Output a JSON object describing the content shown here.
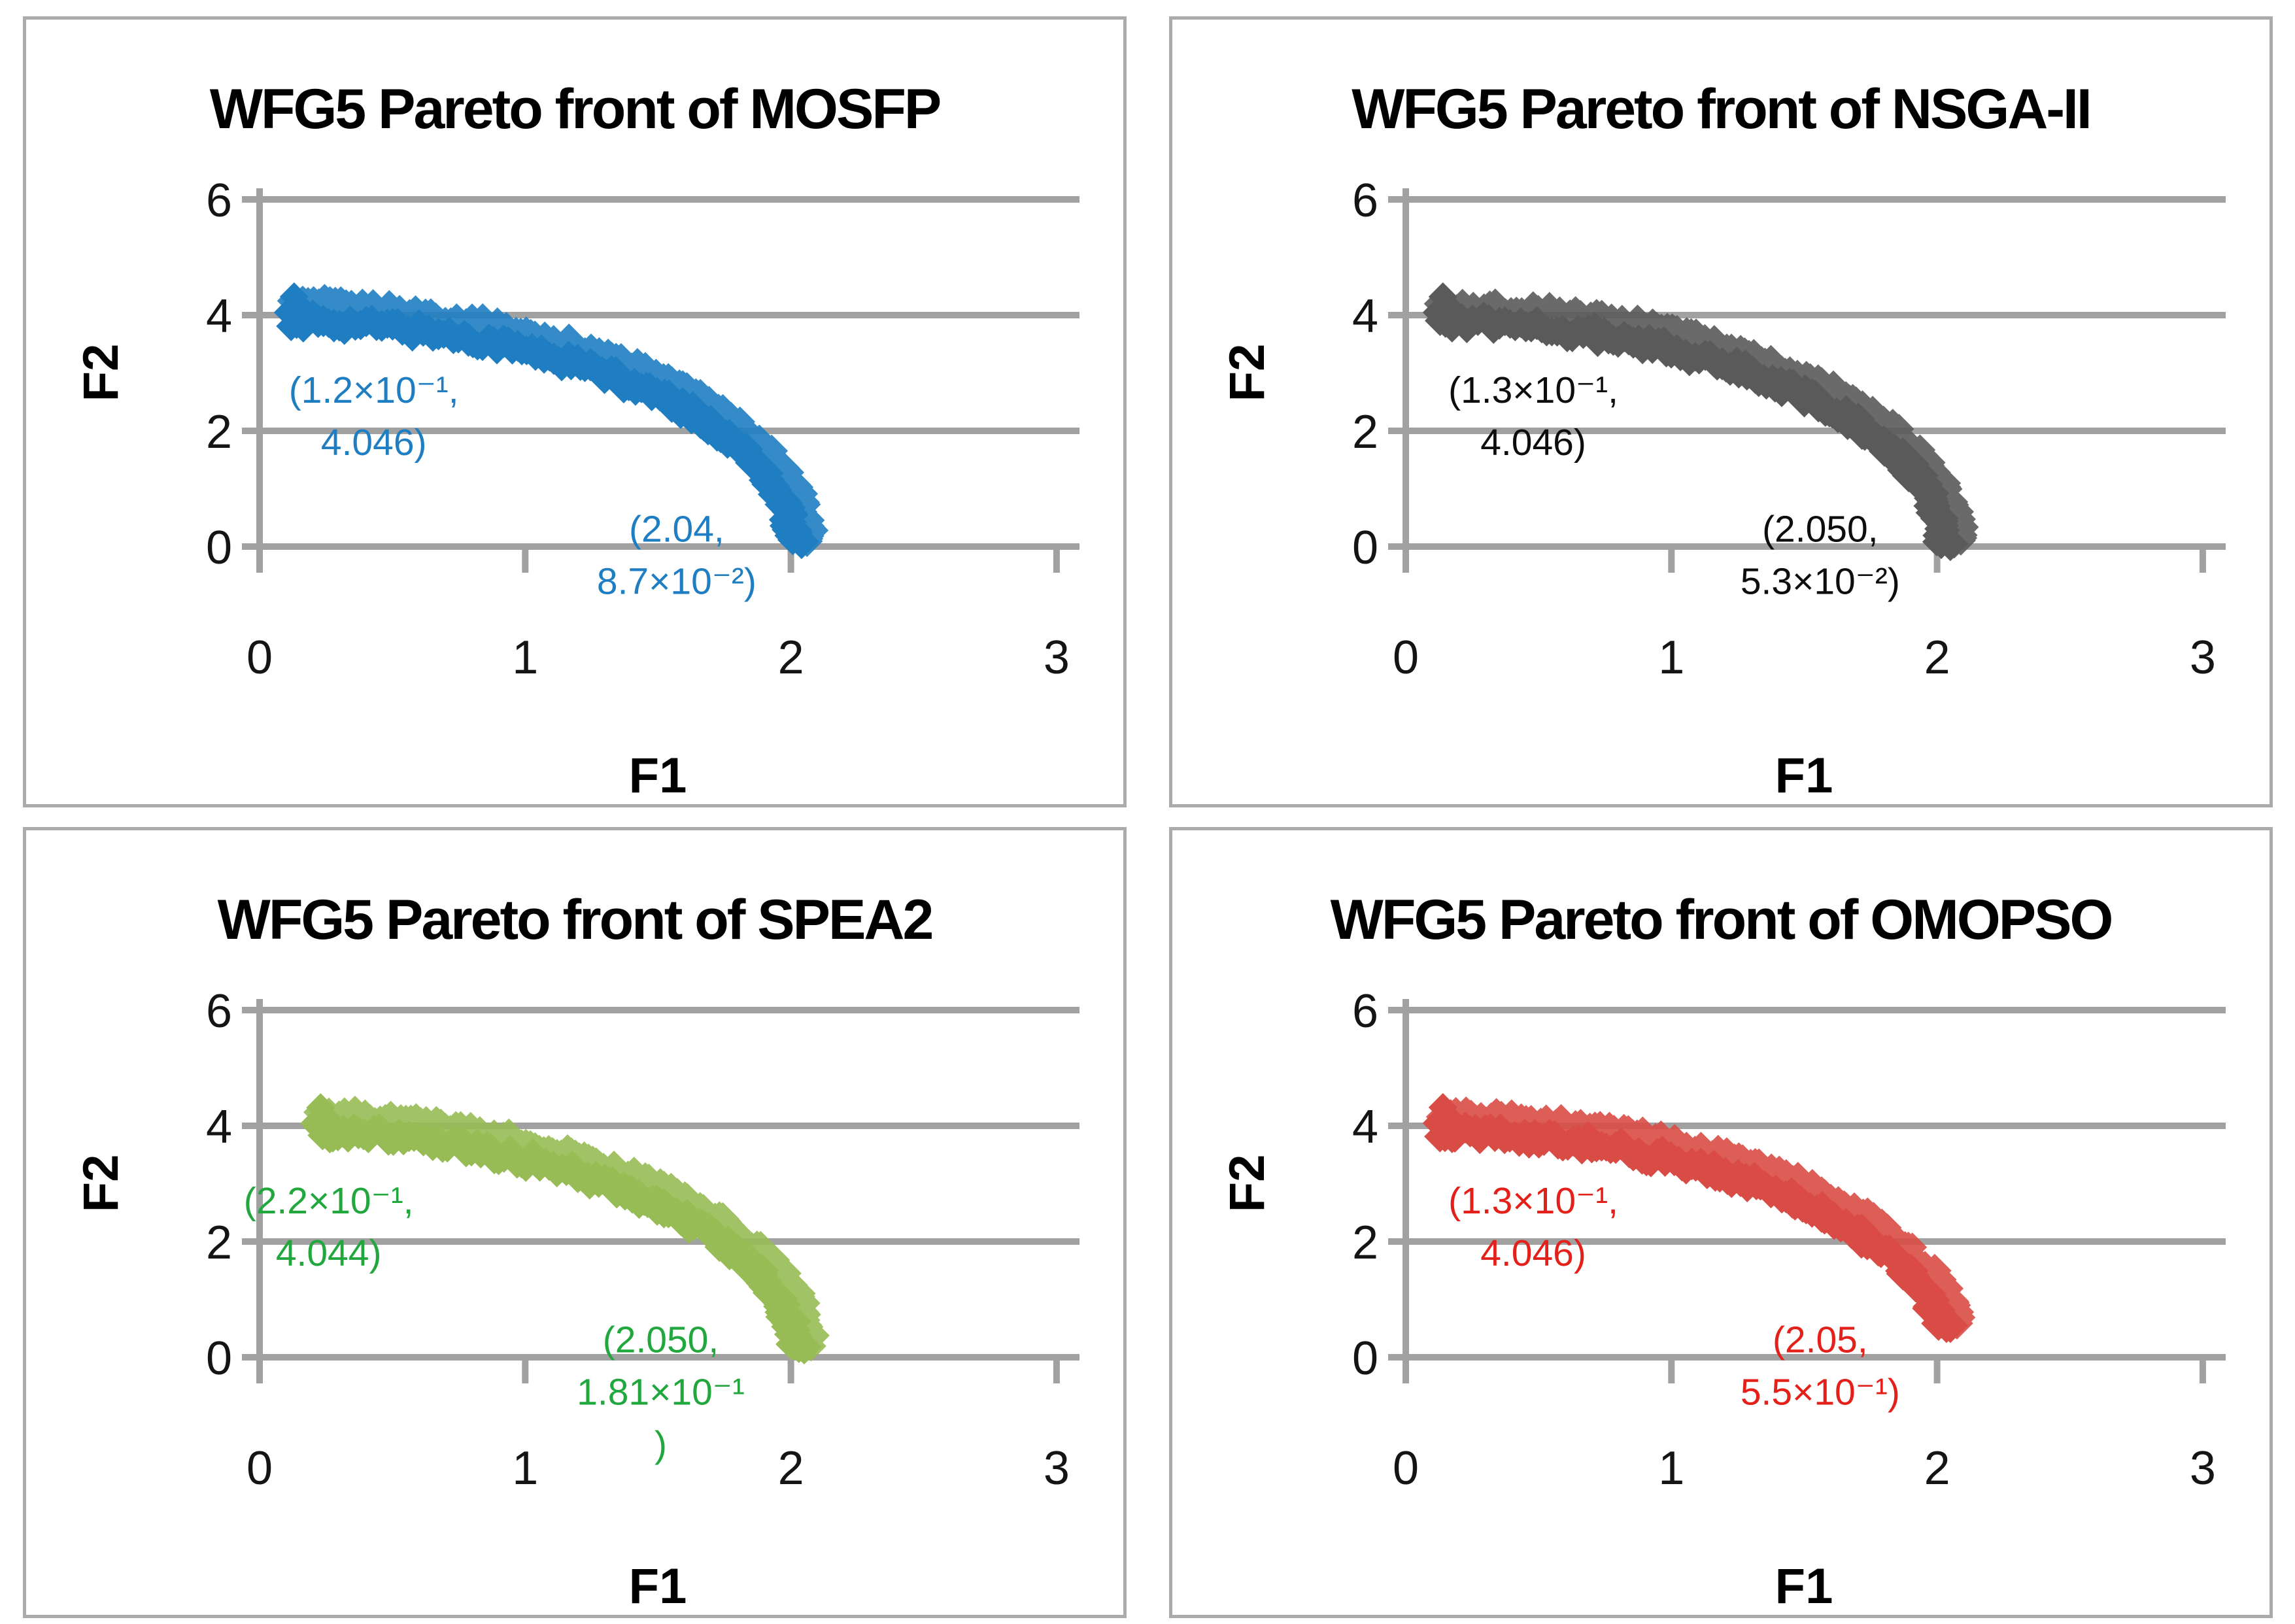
{
  "style": {
    "background": "#FFFFFF",
    "panel_border_color": "#ABABAB",
    "grid_color": "#A1A1A1",
    "tick_label_color": "#141414",
    "title_color": "#000000"
  },
  "chart_data": [
    {
      "type": "scatter",
      "title": "WFG5 Pareto front of MOSFP",
      "xlabel": "F1",
      "ylabel": "F2",
      "xlim": [
        0,
        3
      ],
      "ylim": [
        0,
        6
      ],
      "x_ticks": [
        0,
        1,
        2,
        3
      ],
      "y_ticks": [
        6,
        4,
        2,
        0
      ],
      "grid": true,
      "legend": false,
      "marker": "diamond",
      "front_start": [
        0.12,
        4.046
      ],
      "front_end": [
        2.04,
        0.087
      ],
      "series": [
        {
          "name": "MOSFP",
          "color": "#1F7EC2",
          "points": [
            [
              0.12,
              4.046
            ],
            [
              0.3,
              4.009
            ],
            [
              0.5,
              3.93
            ],
            [
              0.7,
              3.807
            ],
            [
              0.9,
              3.638
            ],
            [
              1.1,
              3.414
            ],
            [
              1.3,
              3.124
            ],
            [
              1.5,
              2.748
            ],
            [
              1.7,
              2.242
            ],
            [
              1.85,
              1.711
            ],
            [
              1.95,
              1.194
            ],
            [
              2.0,
              0.805
            ],
            [
              2.04,
              0.087
            ]
          ]
        }
      ],
      "annotations": [
        {
          "lines": [
            "(1.2×10⁻¹,",
            "4.046)"
          ],
          "x": 0.43,
          "y": 2.7,
          "color": "#1F7EC2"
        },
        {
          "lines": [
            "(2.04,",
            "8.7×10⁻²)"
          ],
          "x": 1.57,
          "y": 0.3,
          "color": "#1F7EC2"
        }
      ]
    },
    {
      "type": "scatter",
      "title": "WFG5 Pareto front of NSGA-II",
      "xlabel": "F1",
      "ylabel": "F2",
      "xlim": [
        0,
        3
      ],
      "ylim": [
        0,
        6
      ],
      "x_ticks": [
        0,
        1,
        2,
        3
      ],
      "y_ticks": [
        6,
        4,
        2,
        0
      ],
      "grid": true,
      "legend": false,
      "marker": "diamond",
      "front_start": [
        0.13,
        4.046
      ],
      "front_end": [
        2.05,
        0.053
      ],
      "series": [
        {
          "name": "NSGA-II",
          "color": "#5A5A5A",
          "points": [
            [
              0.13,
              4.046
            ],
            [
              0.3,
              4.011
            ],
            [
              0.5,
              3.932
            ],
            [
              0.7,
              3.811
            ],
            [
              0.9,
              3.643
            ],
            [
              1.1,
              3.422
            ],
            [
              1.3,
              3.135
            ],
            [
              1.5,
              2.764
            ],
            [
              1.7,
              2.267
            ],
            [
              1.85,
              1.748
            ],
            [
              1.95,
              1.252
            ],
            [
              2.0,
              0.892
            ],
            [
              2.05,
              0.053
            ]
          ]
        }
      ],
      "annotations": [
        {
          "lines": [
            "(1.3×10⁻¹,",
            "4.046)"
          ],
          "x": 0.48,
          "y": 2.7,
          "color": "#0D0D0D"
        },
        {
          "lines": [
            "(2.050,",
            "5.3×10⁻²)"
          ],
          "x": 1.56,
          "y": 0.3,
          "color": "#0D0D0D"
        }
      ]
    },
    {
      "type": "scatter",
      "title": "WFG5 Pareto front of SPEA2",
      "xlabel": "F1",
      "ylabel": "F2",
      "xlim": [
        0,
        3
      ],
      "ylim": [
        0,
        6
      ],
      "x_ticks": [
        0,
        1,
        2,
        3
      ],
      "y_ticks": [
        6,
        4,
        2,
        0
      ],
      "grid": true,
      "legend": false,
      "marker": "diamond",
      "front_start": [
        0.22,
        4.044
      ],
      "front_end": [
        2.05,
        0.181
      ],
      "series": [
        {
          "name": "SPEA2",
          "color": "#97BC55",
          "points": [
            [
              0.22,
              4.044
            ],
            [
              0.4,
              3.99
            ],
            [
              0.6,
              3.89
            ],
            [
              0.8,
              3.746
            ],
            [
              1.0,
              3.552
            ],
            [
              1.2,
              3.3
            ],
            [
              1.4,
              2.974
            ],
            [
              1.6,
              2.547
            ],
            [
              1.8,
              1.953
            ],
            [
              1.95,
              1.267
            ],
            [
              2.0,
              0.91
            ],
            [
              2.05,
              0.181
            ]
          ]
        }
      ],
      "annotations": [
        {
          "lines": [
            "(2.2×10⁻¹,",
            "4.044)"
          ],
          "x": 0.26,
          "y": 2.7,
          "color": "#21A73D"
        },
        {
          "lines": [
            "(2.050,",
            "1.81×10⁻¹",
            ")"
          ],
          "x": 1.51,
          "y": 0.3,
          "color": "#21A73D"
        }
      ]
    },
    {
      "type": "scatter",
      "title": "WFG5 Pareto front of OMOPSO",
      "xlabel": "F1",
      "ylabel": "F2",
      "xlim": [
        0,
        3
      ],
      "ylim": [
        0,
        6
      ],
      "x_ticks": [
        0,
        1,
        2,
        3
      ],
      "y_ticks": [
        6,
        4,
        2,
        0
      ],
      "grid": true,
      "legend": false,
      "marker": "diamond",
      "front_start": [
        0.13,
        4.046
      ],
      "front_end": [
        2.05,
        0.55
      ],
      "series": [
        {
          "name": "OMOPSO",
          "color": "#D94B45",
          "points": [
            [
              0.13,
              4.046
            ],
            [
              0.3,
              4.012
            ],
            [
              0.5,
              3.934
            ],
            [
              0.7,
              3.815
            ],
            [
              0.9,
              3.651
            ],
            [
              1.1,
              3.434
            ],
            [
              1.3,
              3.154
            ],
            [
              1.5,
              2.793
            ],
            [
              1.7,
              2.311
            ],
            [
              1.85,
              1.816
            ],
            [
              1.95,
              1.356
            ],
            [
              2.0,
              1.039
            ],
            [
              2.05,
              0.55
            ]
          ]
        }
      ],
      "annotations": [
        {
          "lines": [
            "(1.3×10⁻¹,",
            "4.046)"
          ],
          "x": 0.48,
          "y": 2.7,
          "color": "#E32019"
        },
        {
          "lines": [
            "(2.05,",
            "5.5×10⁻¹)"
          ],
          "x": 1.56,
          "y": 0.3,
          "color": "#E32019"
        }
      ]
    }
  ]
}
